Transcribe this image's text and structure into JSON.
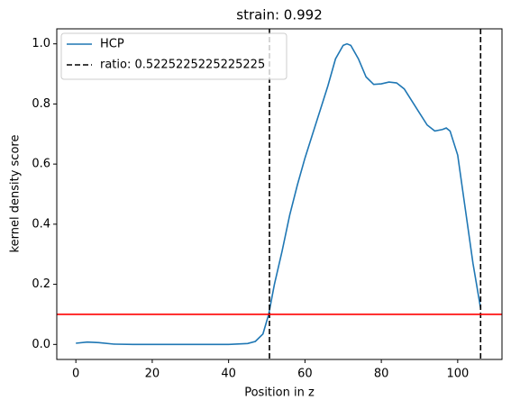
{
  "chart_data": {
    "type": "line",
    "title": "strain: 0.992",
    "xlabel": "Position in z",
    "ylabel": "kernel density score",
    "x": [
      0,
      3,
      6,
      10,
      15,
      20,
      30,
      40,
      45,
      47,
      49,
      50.5,
      52,
      54,
      56,
      58,
      60,
      62,
      64,
      66,
      68,
      70,
      71,
      72,
      74,
      76,
      78,
      80,
      82,
      84,
      86,
      88,
      90,
      92,
      94,
      96,
      97,
      98,
      100,
      102,
      104,
      106
    ],
    "series": [
      {
        "name": "HCP",
        "color": "#1f77b4",
        "values": [
          0.004,
          0.008,
          0.006,
          0.001,
          0,
          0,
          0,
          0,
          0.003,
          0.01,
          0.035,
          0.1,
          0.2,
          0.31,
          0.43,
          0.53,
          0.62,
          0.7,
          0.78,
          0.86,
          0.95,
          0.995,
          1.0,
          0.995,
          0.95,
          0.89,
          0.865,
          0.867,
          0.873,
          0.87,
          0.85,
          0.81,
          0.77,
          0.73,
          0.71,
          0.715,
          0.72,
          0.71,
          0.63,
          0.45,
          0.27,
          0.12
        ]
      }
    ],
    "vlines": {
      "name": "ratio: 0.5225225225225225",
      "color": "#000000",
      "x": [
        50.7,
        106
      ]
    },
    "hline": {
      "y": 0.1,
      "color": "#ff0000"
    },
    "xlim": [
      -5,
      111.6
    ],
    "ylim": [
      -0.05,
      1.05
    ],
    "xticks": [
      0,
      20,
      40,
      60,
      80,
      100
    ],
    "yticks": [
      {
        "value": 0,
        "label": "0.0"
      },
      0.2,
      0.4,
      0.6,
      0.8,
      {
        "value": 1,
        "label": "1.0"
      }
    ],
    "legend": "upper left",
    "grid": false
  }
}
